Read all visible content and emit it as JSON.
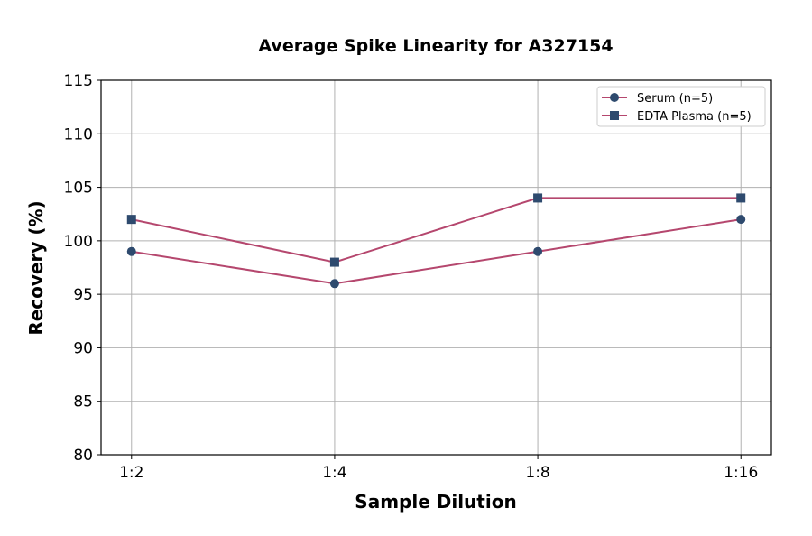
{
  "chart_data": {
    "type": "line",
    "title": "Average Spike Linearity for A327154",
    "xlabel": "Sample Dilution",
    "ylabel": "Recovery (%)",
    "categories": [
      "1:2",
      "1:4",
      "1:8",
      "1:16"
    ],
    "ylim": [
      80,
      115
    ],
    "yticks": [
      80,
      85,
      90,
      95,
      100,
      105,
      110,
      115
    ],
    "grid": true,
    "legend_position": "top-right",
    "series": [
      {
        "name": "Serum (n=5)",
        "values": [
          99,
          96,
          99,
          102
        ],
        "marker": "circle",
        "line_color": "#b5476e",
        "marker_color": "#2e4a6e"
      },
      {
        "name": "EDTA Plasma (n=5)",
        "values": [
          102,
          98,
          104,
          104
        ],
        "marker": "square",
        "line_color": "#b5476e",
        "marker_color": "#2e4a6e"
      }
    ]
  }
}
